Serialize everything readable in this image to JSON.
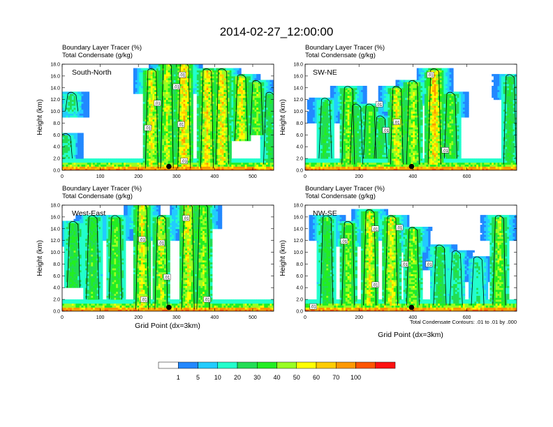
{
  "main_title": "2014-02-27_12:00:00",
  "panel_header": {
    "line1": "Boundary Layer Tracer    (%)",
    "line2": "Total Condensate    (g/kg)"
  },
  "y_axis_label": "Height (km)",
  "x_axis_label": "Grid Point (dx=3km)",
  "contour_note": "Total Condensate Contours: .01 to .01 by .000",
  "contour_label": ".01",
  "colors": {
    "bin_colors": [
      "#ffffff",
      "#2288ff",
      "#22ccff",
      "#22ffcc",
      "#22dd55",
      "#22ee22",
      "#99ff22",
      "#ffff00",
      "#ffcc00",
      "#ff9900",
      "#ff5500",
      "#ff1111"
    ],
    "background": "#ffffff"
  },
  "colorbar": {
    "labels": [
      "1",
      "5",
      "10",
      "20",
      "30",
      "40",
      "50",
      "60",
      "70",
      "100"
    ]
  },
  "chart_data": [
    {
      "type": "heatmap",
      "name": "South-North",
      "label": "South-North",
      "y_ticks": [
        "0.0",
        "2.0",
        "4.0",
        "6.0",
        "8.0",
        "10.0",
        "12.0",
        "14.0",
        "16.0",
        "18.0"
      ],
      "x_ticks": [
        "0",
        "100",
        "200",
        "300",
        "400",
        "500"
      ],
      "xlim": [
        0,
        555
      ],
      "ylim": [
        0,
        18
      ],
      "columns": [
        [
          10,
          2,
          6,
          25
        ],
        [
          25,
          10,
          13,
          25
        ],
        [
          235,
          0.3,
          17,
          55
        ],
        [
          275,
          0.3,
          18,
          50
        ],
        [
          320,
          0.3,
          18,
          65
        ],
        [
          380,
          0.3,
          17,
          60
        ],
        [
          420,
          1,
          17,
          60
        ],
        [
          470,
          5,
          16,
          55
        ],
        [
          510,
          6,
          15,
          45
        ],
        [
          545,
          1,
          13,
          30
        ]
      ],
      "marker": 280,
      "contour_labels": [
        [
          315,
          16.2
        ],
        [
          300,
          14.2
        ],
        [
          250,
          11.4
        ],
        [
          225,
          7.2
        ],
        [
          312,
          7.8
        ],
        [
          320,
          1.6
        ]
      ]
    },
    {
      "type": "heatmap",
      "name": "SW-NE",
      "label": "SW-NE",
      "y_ticks": [
        "0.0",
        "2.0",
        "4.0",
        "6.0",
        "8.0",
        "10.0",
        "12.0",
        "14.0",
        "16.0",
        "18.0"
      ],
      "x_ticks": [
        "0",
        "200",
        "400",
        "600"
      ],
      "xlim": [
        0,
        785
      ],
      "ylim": [
        0,
        18
      ],
      "columns": [
        [
          75,
          2,
          12,
          30
        ],
        [
          160,
          1,
          14,
          45
        ],
        [
          190,
          1,
          11,
          30
        ],
        [
          240,
          2,
          11,
          40
        ],
        [
          280,
          2,
          9,
          30
        ],
        [
          340,
          1,
          14,
          55
        ],
        [
          400,
          1,
          15,
          50
        ],
        [
          480,
          1,
          17,
          65
        ],
        [
          540,
          2,
          13,
          40
        ],
        [
          760,
          1,
          16,
          30
        ]
      ],
      "marker": 395,
      "contour_labels": [
        [
          465,
          16.2
        ],
        [
          275,
          11.2
        ],
        [
          340,
          8.2
        ],
        [
          300,
          6.8
        ],
        [
          520,
          3.4
        ]
      ]
    },
    {
      "type": "heatmap",
      "name": "West-East",
      "label": "West-East",
      "y_ticks": [
        "0.0",
        "2.0",
        "4.0",
        "6.0",
        "8.0",
        "10.0",
        "12.0",
        "14.0",
        "16.0",
        "18.0"
      ],
      "x_ticks": [
        "0",
        "100",
        "200",
        "300",
        "400",
        "500"
      ],
      "xlim": [
        0,
        555
      ],
      "ylim": [
        0,
        18
      ],
      "columns": [
        [
          30,
          4,
          15,
          35
        ],
        [
          80,
          2,
          16,
          35
        ],
        [
          140,
          2,
          16,
          40
        ],
        [
          210,
          0.3,
          18,
          55
        ],
        [
          260,
          0.3,
          16,
          50
        ],
        [
          330,
          0.3,
          18,
          55
        ],
        [
          370,
          0.3,
          18,
          45
        ]
      ],
      "marker": 280,
      "contour_labels": [
        [
          325,
          15.8
        ],
        [
          210,
          12.2
        ],
        [
          260,
          11.6
        ],
        [
          275,
          5.8
        ],
        [
          215,
          2.0
        ],
        [
          380,
          2.0
        ]
      ]
    },
    {
      "type": "heatmap",
      "name": "NW-SE",
      "label": "NW-SE",
      "y_ticks": [
        "0.0",
        "2.0",
        "4.0",
        "6.0",
        "8.0",
        "10.0",
        "12.0",
        "14.0",
        "16.0",
        "18.0"
      ],
      "x_ticks": [
        "0",
        "200",
        "400",
        "600"
      ],
      "xlim": [
        0,
        785
      ],
      "ylim": [
        0,
        18
      ],
      "columns": [
        [
          80,
          1,
          16,
          35
        ],
        [
          160,
          1,
          15,
          45
        ],
        [
          240,
          1,
          17,
          55
        ],
        [
          320,
          1,
          16,
          55
        ],
        [
          400,
          1,
          14,
          45
        ],
        [
          500,
          1,
          11,
          30
        ],
        [
          560,
          1,
          10,
          25
        ],
        [
          640,
          1,
          9,
          20
        ],
        [
          720,
          1,
          16,
          45
        ]
      ],
      "marker": 395,
      "contour_labels": [
        [
          145,
          11.9
        ],
        [
          260,
          14.0
        ],
        [
          350,
          14.2
        ],
        [
          370,
          8.0
        ],
        [
          460,
          8.0
        ],
        [
          260,
          4.5
        ],
        [
          30,
          0.8
        ]
      ]
    }
  ]
}
